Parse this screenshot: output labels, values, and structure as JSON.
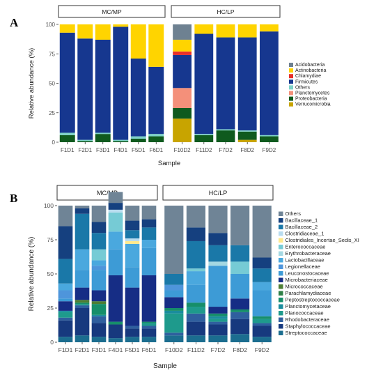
{
  "chart_data": [
    {
      "panel": "A",
      "type": "bar",
      "stacked": true,
      "ylabel": "Relative abundance (%)",
      "xlabel": "Sample",
      "ylim": [
        0,
        100
      ],
      "yticks": [
        "0",
        "25",
        "50",
        "75",
        "100"
      ],
      "facets": [
        {
          "label": "MC/MP",
          "categories": [
            "F1D1",
            "F2D1",
            "F3D1",
            "F4D1",
            "F5D1",
            "F6D1"
          ]
        },
        {
          "label": "HC/LP",
          "categories": [
            "F10D2",
            "F11D2",
            "F7D2",
            "F8D2",
            "F9D2"
          ]
        }
      ],
      "categories": [
        "F1D1",
        "F2D1",
        "F3D1",
        "F4D1",
        "F5D1",
        "F6D1",
        "F10D2",
        "F11D2",
        "F7D2",
        "F8D2",
        "F9D2"
      ],
      "legend_position": "right",
      "series": [
        {
          "name": "Verrucomicrobia",
          "color": "#c8a400",
          "values": [
            0,
            0,
            0,
            0,
            0,
            0,
            20,
            0,
            0,
            2,
            0
          ]
        },
        {
          "name": "Proteobacteria",
          "color": "#0f5a1e",
          "values": [
            6,
            1,
            7,
            1,
            3,
            5,
            9,
            6,
            10,
            7,
            5
          ]
        },
        {
          "name": "Planctomycetes",
          "color": "#f4907a",
          "values": [
            0,
            0,
            0,
            0,
            0,
            0,
            17,
            0,
            0,
            0,
            0
          ]
        },
        {
          "name": "Others",
          "color": "#7ed3c8",
          "values": [
            2,
            1,
            1,
            1,
            2,
            2,
            0,
            1,
            1,
            1,
            1
          ]
        },
        {
          "name": "Firmicutes",
          "color": "#16378f",
          "values": [
            85,
            86,
            79,
            96,
            66,
            57,
            28,
            85,
            78,
            79,
            88
          ]
        },
        {
          "name": "Chlamydiae",
          "color": "#e8302a",
          "values": [
            0,
            0,
            0,
            0,
            0,
            0,
            3,
            0,
            0,
            0,
            0
          ]
        },
        {
          "name": "Actinobacteria",
          "color": "#ffd400",
          "values": [
            7,
            12,
            13,
            2,
            29,
            36,
            10,
            8,
            11,
            11,
            6
          ]
        },
        {
          "name": "Acidobacteria",
          "color": "#6e8191",
          "values": [
            0,
            0,
            0,
            0,
            0,
            0,
            13,
            0,
            0,
            0,
            0
          ]
        }
      ],
      "legend": [
        "Acidobacteria",
        "Actinobacteria",
        "Chlamydiae",
        "Firmicutes",
        "Others",
        "Planctomycetes",
        "Proteobacteria",
        "Verrucomicrobia"
      ]
    },
    {
      "panel": "B",
      "type": "bar",
      "stacked": true,
      "ylabel": "Relative abundance (%)",
      "xlabel": "Sample",
      "ylim": [
        0,
        100
      ],
      "yticks": [
        "0",
        "25",
        "50",
        "75",
        "100"
      ],
      "facets": [
        {
          "label": "MC/MP",
          "categories": [
            "F1D1",
            "F2D1",
            "F3D1",
            "F4D1",
            "F5D1",
            "F6D1"
          ]
        },
        {
          "label": "HC/LP",
          "categories": [
            "F10D2",
            "F11D2",
            "F7D2",
            "F8D2",
            "F9D2"
          ]
        }
      ],
      "categories": [
        "F1D1",
        "F2D1",
        "F3D1",
        "F4D1",
        "F5D1",
        "F6D1",
        "F10D2",
        "F11D2",
        "F7D2",
        "F8D2",
        "F9D2"
      ],
      "legend_position": "right",
      "series": [
        {
          "name": "Streptococcaceae",
          "color": "#1b6d8f",
          "values": [
            4,
            5,
            4,
            3,
            4,
            4,
            5,
            5,
            5,
            6,
            4
          ]
        },
        {
          "name": "Staphylococcaceae",
          "color": "#17397e",
          "values": [
            12,
            20,
            10,
            10,
            6,
            6,
            0,
            10,
            8,
            11,
            8
          ]
        },
        {
          "name": "Rhodobacteraceae",
          "color": "#2f5f9e",
          "values": [
            2,
            2,
            5,
            0,
            2,
            2,
            2,
            6,
            2,
            5,
            2
          ]
        },
        {
          "name": "Planococcaceae",
          "color": "#1e9a8c",
          "values": [
            4,
            1,
            0,
            0,
            0,
            2,
            14,
            5,
            2,
            0,
            3
          ]
        },
        {
          "name": "Planctomycetaceae",
          "color": "#1a8d9d",
          "values": [
            1,
            0,
            1,
            0,
            0,
            0,
            2,
            0,
            2,
            0,
            0
          ]
        },
        {
          "name": "Peptostreptococcaceae",
          "color": "#168e6a",
          "values": [
            0,
            1,
            8,
            2,
            0,
            1,
            2,
            3,
            2,
            2,
            2
          ]
        },
        {
          "name": "Parachlamydiaceae",
          "color": "#2e7f46",
          "values": [
            0,
            0,
            0,
            0,
            0,
            0,
            0,
            0,
            0,
            0,
            0
          ]
        },
        {
          "name": "Micrococcaceae",
          "color": "#4d7e33",
          "values": [
            0,
            2,
            2,
            0,
            0,
            0,
            0,
            0,
            0,
            0,
            0
          ]
        },
        {
          "name": "Microbacteriaceae",
          "color": "#162d85",
          "values": [
            7,
            9,
            8,
            34,
            28,
            34,
            8,
            0,
            5,
            8,
            0
          ]
        },
        {
          "name": "Leuconostocaceae",
          "color": "#3d9bd6",
          "values": [
            2,
            13,
            15,
            19,
            15,
            20,
            5,
            13,
            30,
            18,
            19
          ]
        },
        {
          "name": "Legionellaceae",
          "color": "#4e95db",
          "values": [
            6,
            0,
            3,
            0,
            0,
            0,
            4,
            0,
            0,
            0,
            0
          ]
        },
        {
          "name": "Lactobacillaceae",
          "color": "#4aa8de",
          "values": [
            5,
            15,
            4,
            13,
            17,
            6,
            0,
            10,
            0,
            0,
            6
          ]
        },
        {
          "name": "Erythrobacteraceae",
          "color": "#a4d8e2",
          "values": [
            0,
            0,
            0,
            0,
            0,
            0,
            0,
            0,
            3,
            0,
            0
          ]
        },
        {
          "name": "Enterococcaceae",
          "color": "#76cbd5",
          "values": [
            0,
            0,
            8,
            14,
            0,
            0,
            0,
            2,
            0,
            9,
            0
          ]
        },
        {
          "name": "Clostridiales_Incertae_Sedis_XI",
          "color": "#ffe98c",
          "values": [
            0,
            0,
            0,
            0,
            2,
            0,
            0,
            0,
            0,
            0,
            0
          ]
        },
        {
          "name": "Clostridiaceae_1",
          "color": "#b8dcef",
          "values": [
            0,
            0,
            0,
            2,
            2,
            0,
            0,
            0,
            0,
            0,
            0
          ]
        },
        {
          "name": "Bacillaceae_2",
          "color": "#1a78a8",
          "values": [
            18,
            26,
            12,
            0,
            6,
            9,
            8,
            20,
            12,
            12,
            10
          ]
        },
        {
          "name": "Bacillaceae_1",
          "color": "#15407f",
          "values": [
            24,
            4,
            8,
            5,
            7,
            6,
            0,
            10,
            9,
            0,
            8
          ]
        },
        {
          "name": "Others",
          "color": "#6f8496",
          "values": [
            15,
            2,
            12,
            8,
            11,
            10,
            50,
            16,
            20,
            29,
            38
          ]
        }
      ],
      "legend": [
        "Others",
        "Bacillaceae_1",
        "Bacillaceae_2",
        "Clostridiaceae_1",
        "Clostridiales_Incertae_Sedis_XI",
        "Enterococcaceae",
        "Erythrobacteraceae",
        "Lactobacillaceae",
        "Legionellaceae",
        "Leuconostocaceae",
        "Microbacteriaceae",
        "Micrococcaceae",
        "Parachlamydiaceae",
        "Peptostreptococcaceae",
        "Planctomycetaceae",
        "Planococcaceae",
        "Rhodobacteraceae",
        "Staphylococcaceae",
        "Streptococcaceae"
      ]
    }
  ]
}
